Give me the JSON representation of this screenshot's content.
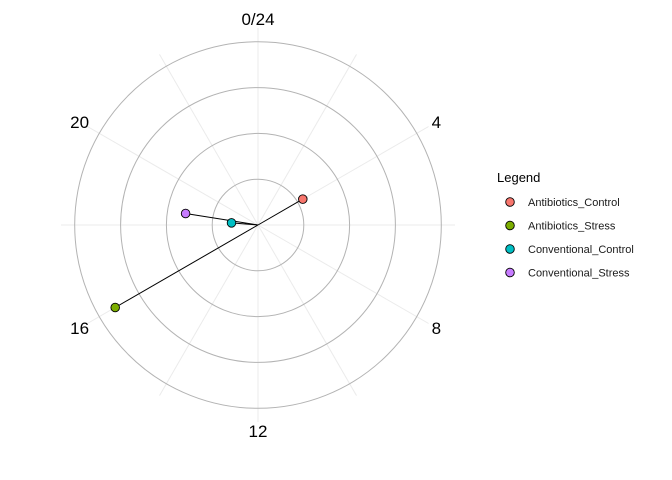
{
  "chart_data": {
    "type": "polar-scatter",
    "axis": {
      "period": 24,
      "ticks": [
        {
          "hour": 0,
          "label": "0/24"
        },
        {
          "hour": 4,
          "label": "4"
        },
        {
          "hour": 8,
          "label": "8"
        },
        {
          "hour": 12,
          "label": "12"
        },
        {
          "hour": 16,
          "label": "16"
        },
        {
          "hour": 20,
          "label": "20"
        }
      ],
      "radial_rings": [
        1,
        2,
        3,
        4
      ],
      "radial_max": 4.3,
      "minor_spokes_every_hours": 2
    },
    "grid": true,
    "legend": {
      "title": "Legend",
      "position": "right"
    },
    "series": [
      {
        "name": "Antibiotics_Control",
        "color": "#F8766D",
        "hour": 4.0,
        "radius": 1.13
      },
      {
        "name": "Antibiotics_Stress",
        "color": "#7CAE00",
        "hour": 16.0,
        "radius": 3.6
      },
      {
        "name": "Conventional_Control",
        "color": "#00BFC4",
        "hour": 18.3,
        "radius": 0.58
      },
      {
        "name": "Conventional_Stress",
        "color": "#C77CFF",
        "hour": 18.6,
        "radius": 1.6
      }
    ]
  }
}
